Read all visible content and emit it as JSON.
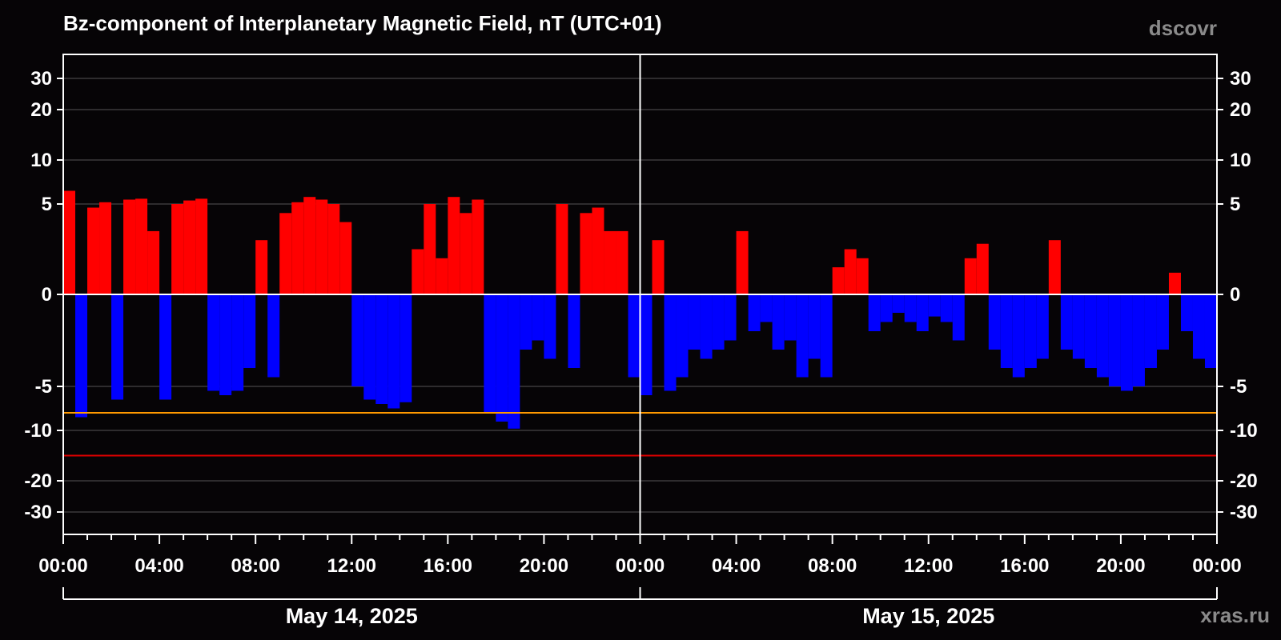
{
  "header": {
    "title": "Bz-component of Interplanetary Magnetic Field, nT (UTC+01)",
    "source": "dscovr",
    "footer_site": "xras.ru"
  },
  "colors": {
    "positive": "#ff0000",
    "negative": "#0000ff",
    "background": "#060406",
    "frame": "#ffffff",
    "grid": "#555555",
    "threshold_moderate": "#ff9900",
    "threshold_strong": "#dd0000"
  },
  "chart_data": {
    "type": "bar",
    "title": "Bz-component of Interplanetary Magnetic Field, nT (UTC+01)",
    "xlabel": "",
    "ylabel": "",
    "x_range": [
      "2025-05-14 00:00",
      "2025-05-16 00:00"
    ],
    "x_tick_labels": [
      "00:00",
      "04:00",
      "08:00",
      "12:00",
      "16:00",
      "20:00",
      "00:00",
      "04:00",
      "08:00",
      "12:00",
      "16:00",
      "20:00",
      "00:00"
    ],
    "x_tick_hours": [
      0,
      4,
      8,
      12,
      16,
      20,
      24,
      28,
      32,
      36,
      40,
      44,
      48
    ],
    "day_labels": [
      {
        "label": "May 14, 2025",
        "start_hour": 0,
        "end_hour": 24
      },
      {
        "label": "May 15, 2025",
        "start_hour": 24,
        "end_hour": 48
      }
    ],
    "y_scale": "symmetric-log",
    "ylim": [
      -40,
      40
    ],
    "y_ticks": [
      30,
      20,
      10,
      5,
      0,
      -5,
      -10,
      -20,
      -30
    ],
    "y_tick_labels": [
      "30",
      "20",
      "10",
      "5",
      "0",
      "-5",
      "-10",
      "-20",
      "-30"
    ],
    "grid": true,
    "thresholds": [
      {
        "value": -8,
        "color": "#ff9900"
      },
      {
        "value": -15,
        "color": "#dd0000"
      }
    ],
    "series": [
      {
        "x_hours": [
          0,
          0.5,
          1,
          1.5,
          2,
          2.5,
          3,
          3.5,
          4,
          4.5,
          5,
          5.5,
          6,
          6.5,
          7,
          7.5,
          8,
          8.5,
          9,
          9.5,
          10,
          10.5,
          11,
          11.5,
          12,
          12.5,
          13,
          13.5,
          14,
          14.5,
          15,
          15.5,
          16,
          16.5,
          17,
          17.5,
          18,
          18.5,
          19,
          19.5,
          20,
          20.5,
          21,
          21.5,
          22,
          22.5,
          23,
          23.5,
          24,
          24.5,
          25,
          25.5,
          26,
          26.5,
          27,
          27.5,
          28,
          28.5,
          29,
          29.5,
          30,
          30.5,
          31,
          31.5,
          32,
          32.5,
          33,
          33.5,
          34,
          34.5,
          35,
          35.5,
          36,
          36.5,
          37,
          37.5,
          38,
          38.5,
          39,
          39.5,
          40,
          40.5,
          41,
          41.5,
          42,
          42.5,
          43,
          43.5,
          44,
          44.5,
          45,
          45.5,
          46,
          46.5,
          47,
          47.5
        ],
        "values": [
          6.5,
          -8.5,
          4.8,
          5.2,
          -6.5,
          5.5,
          5.6,
          3.5,
          -6.5,
          5.0,
          5.4,
          5.6,
          -5.5,
          -6.0,
          -5.5,
          -4.0,
          3.0,
          -4.5,
          4.5,
          5.2,
          5.8,
          5.5,
          5.0,
          4.0,
          -5.0,
          -6.5,
          -7.0,
          -7.5,
          -6.8,
          2.5,
          5.0,
          2.0,
          5.8,
          4.5,
          5.5,
          -8.0,
          -9.0,
          -9.8,
          -3.0,
          -2.5,
          -3.5,
          5.0,
          -4.0,
          4.5,
          4.8,
          3.5,
          3.5,
          -4.5,
          -6.0,
          3.0,
          -5.5,
          -4.5,
          -3.0,
          -3.5,
          -3.0,
          -2.5,
          3.5,
          -2.0,
          -1.5,
          -3.0,
          -2.5,
          -4.5,
          -3.5,
          -4.5,
          1.5,
          2.5,
          2.0,
          -2.0,
          -1.5,
          -1.0,
          -1.5,
          -2.0,
          -1.2,
          -1.5,
          -2.5,
          2.0,
          2.8,
          -3.0,
          -4.0,
          -4.5,
          -4.0,
          -3.5,
          3.0,
          -3.0,
          -3.5,
          -4.0,
          -4.5,
          -5.0,
          -5.5,
          -5.0,
          -4.0,
          -3.0,
          1.2,
          -2.0,
          -3.5,
          -4.0
        ]
      }
    ]
  }
}
